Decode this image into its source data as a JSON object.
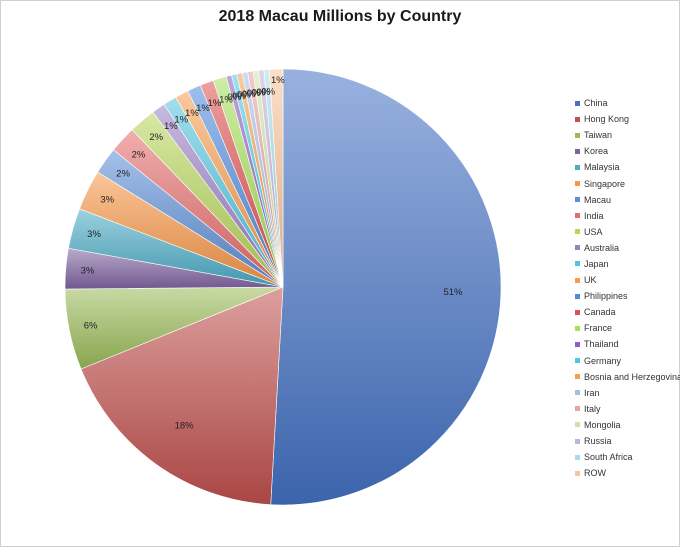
{
  "chart_data": {
    "type": "pie",
    "title": "2018 Macau Millions by Country",
    "legend_position": "right",
    "slices": [
      {
        "name": "China",
        "value": 51,
        "label": "51%",
        "color": "#4472c4"
      },
      {
        "name": "Hong Kong",
        "value": 18,
        "label": "18%",
        "color": "#c0504d"
      },
      {
        "name": "Taiwan",
        "value": 6,
        "label": "6%",
        "color": "#9bbb59"
      },
      {
        "name": "Korea",
        "value": 3,
        "label": "3%",
        "color": "#8064a2"
      },
      {
        "name": "Malaysia",
        "value": 3,
        "label": "3%",
        "color": "#4bacc6"
      },
      {
        "name": "Singapore",
        "value": 3,
        "label": "3%",
        "color": "#f79646"
      },
      {
        "name": "Macau",
        "value": 2,
        "label": "2%",
        "color": "#5b8ed6"
      },
      {
        "name": "India",
        "value": 2,
        "label": "2%",
        "color": "#e66b6b"
      },
      {
        "name": "USA",
        "value": 2,
        "label": "2%",
        "color": "#b6d65a"
      },
      {
        "name": "Australia",
        "value": 1,
        "label": "1%",
        "color": "#9a7fc4"
      },
      {
        "name": "Japan",
        "value": 1,
        "label": "1%",
        "color": "#52c3de"
      },
      {
        "name": "UK",
        "value": 1,
        "label": "1%",
        "color": "#f79c4d"
      },
      {
        "name": "Philippines",
        "value": 1,
        "label": "1%",
        "color": "#4f8bdc"
      },
      {
        "name": "Canada",
        "value": 1,
        "label": "1%",
        "color": "#e05050"
      },
      {
        "name": "France",
        "value": 1,
        "label": "1%",
        "color": "#a6e05a"
      },
      {
        "name": "Thailand",
        "value": 0.4,
        "label": "0%",
        "color": "#8c5fc4"
      },
      {
        "name": "Germany",
        "value": 0.4,
        "label": "0%",
        "color": "#4cc8e0"
      },
      {
        "name": "Bosnia and Herzegovina",
        "value": 0.4,
        "label": "0%",
        "color": "#f0a050"
      },
      {
        "name": "Iran",
        "value": 0.4,
        "label": "0%",
        "color": "#a9bde0"
      },
      {
        "name": "Italy",
        "value": 0.4,
        "label": "0%",
        "color": "#e6a3a3"
      },
      {
        "name": "Mongolia",
        "value": 0.4,
        "label": "0%",
        "color": "#cfe3a6"
      },
      {
        "name": "Russia",
        "value": 0.4,
        "label": "0%",
        "color": "#c3b3d9"
      },
      {
        "name": "South Africa",
        "value": 0.4,
        "label": "0%",
        "color": "#a6dcea"
      },
      {
        "name": "ROW",
        "value": 1,
        "label": "1%",
        "color": "#f9c499"
      }
    ]
  }
}
